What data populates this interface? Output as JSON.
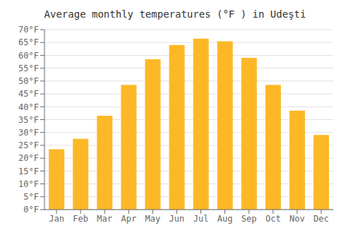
{
  "chart_data": {
    "type": "bar",
    "title": "Average monthly temperatures (°F ) in Udeşti",
    "categories": [
      "Jan",
      "Feb",
      "Mar",
      "Apr",
      "May",
      "Jun",
      "Jul",
      "Aug",
      "Sep",
      "Oct",
      "Nov",
      "Dec"
    ],
    "values": [
      23.5,
      27.5,
      36.5,
      48.5,
      58.5,
      64.0,
      66.5,
      65.5,
      59.0,
      48.5,
      38.5,
      29.0
    ],
    "color": "#FDB827",
    "ylim": [
      0,
      70
    ],
    "yticks": [
      {
        "value": 0,
        "label": "0°F"
      },
      {
        "value": 5,
        "label": "5°F"
      },
      {
        "value": 10,
        "label": "10°F"
      },
      {
        "value": 15,
        "label": "15°F"
      },
      {
        "value": 20,
        "label": "20°F"
      },
      {
        "value": 25,
        "label": "25°F"
      },
      {
        "value": 30,
        "label": "30°F"
      },
      {
        "value": 35,
        "label": "35°F"
      },
      {
        "value": 40,
        "label": "40°F"
      },
      {
        "value": 45,
        "label": "45°F"
      },
      {
        "value": 50,
        "label": "50°F"
      },
      {
        "value": 55,
        "label": "55°F"
      },
      {
        "value": 60,
        "label": "60°F"
      },
      {
        "value": 65,
        "label": "65°F"
      },
      {
        "value": 70,
        "label": "70°F"
      }
    ],
    "grid": true
  }
}
